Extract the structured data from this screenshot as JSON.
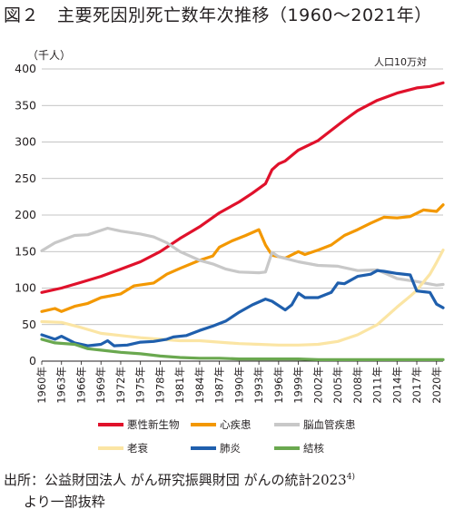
{
  "figure": {
    "number": "図２",
    "title": "主要死因別死亡数年次推移（1960～2021年）",
    "source_text": "出所：公益財団法人 がん研究振興財団 がんの統計2023",
    "source_sup": "4)",
    "source_text2": "より一部抜粋"
  },
  "chart_data": {
    "type": "line",
    "yunit": "（千人）",
    "rate_unit": "人口10万対",
    "ylim": [
      0,
      400
    ],
    "yticks": [
      0,
      50,
      100,
      150,
      200,
      250,
      300,
      350,
      400
    ],
    "xlim": [
      1960,
      2021
    ],
    "xticks": [
      "1960年",
      "1963年",
      "1966年",
      "1969年",
      "1972年",
      "1975年",
      "1978年",
      "1981年",
      "1984年",
      "1987年",
      "1990年",
      "1993年",
      "1996年",
      "1999年",
      "2002年",
      "2005年",
      "2008年",
      "2011年",
      "2014年",
      "2017年",
      "2020年"
    ],
    "series": [
      {
        "name": "悪性新生物",
        "color": "#e0112b",
        "points": [
          [
            1960,
            94
          ],
          [
            1963,
            100
          ],
          [
            1966,
            108
          ],
          [
            1969,
            116
          ],
          [
            1972,
            126
          ],
          [
            1975,
            136
          ],
          [
            1978,
            150
          ],
          [
            1981,
            168
          ],
          [
            1984,
            184
          ],
          [
            1987,
            203
          ],
          [
            1990,
            218
          ],
          [
            1992,
            230
          ],
          [
            1994,
            243
          ],
          [
            1995,
            262
          ],
          [
            1996,
            270
          ],
          [
            1997,
            274
          ],
          [
            1999,
            289
          ],
          [
            2002,
            302
          ],
          [
            2004,
            316
          ],
          [
            2006,
            330
          ],
          [
            2008,
            343
          ],
          [
            2011,
            357
          ],
          [
            2014,
            367
          ],
          [
            2017,
            374
          ],
          [
            2019,
            376
          ],
          [
            2021,
            381
          ]
        ]
      },
      {
        "name": "心疾患",
        "color": "#f39800",
        "points": [
          [
            1960,
            68
          ],
          [
            1962,
            72
          ],
          [
            1963,
            68
          ],
          [
            1965,
            75
          ],
          [
            1967,
            79
          ],
          [
            1969,
            87
          ],
          [
            1972,
            92
          ],
          [
            1974,
            103
          ],
          [
            1977,
            107
          ],
          [
            1979,
            119
          ],
          [
            1981,
            127
          ],
          [
            1984,
            138
          ],
          [
            1986,
            144
          ],
          [
            1987,
            156
          ],
          [
            1989,
            165
          ],
          [
            1991,
            172
          ],
          [
            1993,
            180
          ],
          [
            1994,
            159
          ],
          [
            1995,
            145
          ],
          [
            1997,
            141
          ],
          [
            1999,
            150
          ],
          [
            2000,
            146
          ],
          [
            2002,
            152
          ],
          [
            2004,
            159
          ],
          [
            2006,
            172
          ],
          [
            2008,
            180
          ],
          [
            2010,
            189
          ],
          [
            2012,
            197
          ],
          [
            2014,
            196
          ],
          [
            2016,
            198
          ],
          [
            2018,
            207
          ],
          [
            2020,
            205
          ],
          [
            2021,
            214
          ]
        ]
      },
      {
        "name": "脳血管疾患",
        "color": "#c8c8c8",
        "points": [
          [
            1960,
            151
          ],
          [
            1962,
            162
          ],
          [
            1965,
            172
          ],
          [
            1967,
            173
          ],
          [
            1970,
            182
          ],
          [
            1972,
            178
          ],
          [
            1975,
            174
          ],
          [
            1977,
            170
          ],
          [
            1979,
            162
          ],
          [
            1981,
            150
          ],
          [
            1984,
            138
          ],
          [
            1986,
            133
          ],
          [
            1988,
            126
          ],
          [
            1990,
            122
          ],
          [
            1993,
            121
          ],
          [
            1994,
            122
          ],
          [
            1995,
            149
          ],
          [
            1996,
            143
          ],
          [
            1999,
            136
          ],
          [
            2002,
            131
          ],
          [
            2005,
            130
          ],
          [
            2008,
            124
          ],
          [
            2011,
            125
          ],
          [
            2014,
            113
          ],
          [
            2017,
            109
          ],
          [
            2020,
            104
          ],
          [
            2021,
            105
          ]
        ]
      },
      {
        "name": "老衰",
        "color": "#fbe5a4",
        "points": [
          [
            1960,
            54
          ],
          [
            1963,
            53
          ],
          [
            1966,
            46
          ],
          [
            1969,
            38
          ],
          [
            1972,
            35
          ],
          [
            1975,
            32
          ],
          [
            1978,
            30
          ],
          [
            1981,
            28
          ],
          [
            1984,
            28
          ],
          [
            1987,
            26
          ],
          [
            1990,
            24
          ],
          [
            1993,
            23
          ],
          [
            1996,
            22
          ],
          [
            1999,
            22
          ],
          [
            2002,
            23
          ],
          [
            2005,
            27
          ],
          [
            2008,
            36
          ],
          [
            2011,
            50
          ],
          [
            2014,
            74
          ],
          [
            2016,
            89
          ],
          [
            2017,
            97
          ],
          [
            2019,
            119
          ],
          [
            2020,
            135
          ],
          [
            2021,
            152
          ]
        ]
      },
      {
        "name": "肺炎",
        "color": "#1f5fad",
        "points": [
          [
            1960,
            36
          ],
          [
            1962,
            30
          ],
          [
            1963,
            34
          ],
          [
            1965,
            25
          ],
          [
            1967,
            21
          ],
          [
            1969,
            23
          ],
          [
            1970,
            28
          ],
          [
            1971,
            21
          ],
          [
            1973,
            22
          ],
          [
            1975,
            26
          ],
          [
            1977,
            27
          ],
          [
            1979,
            30
          ],
          [
            1980,
            33
          ],
          [
            1982,
            35
          ],
          [
            1984,
            42
          ],
          [
            1986,
            48
          ],
          [
            1988,
            55
          ],
          [
            1990,
            67
          ],
          [
            1992,
            77
          ],
          [
            1994,
            85
          ],
          [
            1995,
            82
          ],
          [
            1997,
            70
          ],
          [
            1998,
            77
          ],
          [
            1999,
            93
          ],
          [
            2000,
            87
          ],
          [
            2002,
            87
          ],
          [
            2004,
            94
          ],
          [
            2005,
            107
          ],
          [
            2006,
            106
          ],
          [
            2008,
            116
          ],
          [
            2010,
            119
          ],
          [
            2011,
            124
          ],
          [
            2012,
            123
          ],
          [
            2014,
            120
          ],
          [
            2016,
            118
          ],
          [
            2017,
            96
          ],
          [
            2018,
            95
          ],
          [
            2019,
            94
          ],
          [
            2020,
            78
          ],
          [
            2021,
            73
          ]
        ]
      },
      {
        "name": "結核",
        "color": "#6aa84f",
        "points": [
          [
            1960,
            30
          ],
          [
            1962,
            25
          ],
          [
            1965,
            23
          ],
          [
            1967,
            17
          ],
          [
            1969,
            15
          ],
          [
            1972,
            12
          ],
          [
            1975,
            10
          ],
          [
            1978,
            7
          ],
          [
            1981,
            5
          ],
          [
            1984,
            4
          ],
          [
            1987,
            4
          ],
          [
            1990,
            3
          ],
          [
            1993,
            3
          ],
          [
            1996,
            3
          ],
          [
            1999,
            3
          ],
          [
            2002,
            2
          ],
          [
            2005,
            2
          ],
          [
            2008,
            2
          ],
          [
            2011,
            2
          ],
          [
            2014,
            2
          ],
          [
            2017,
            2
          ],
          [
            2021,
            2
          ]
        ]
      }
    ]
  }
}
